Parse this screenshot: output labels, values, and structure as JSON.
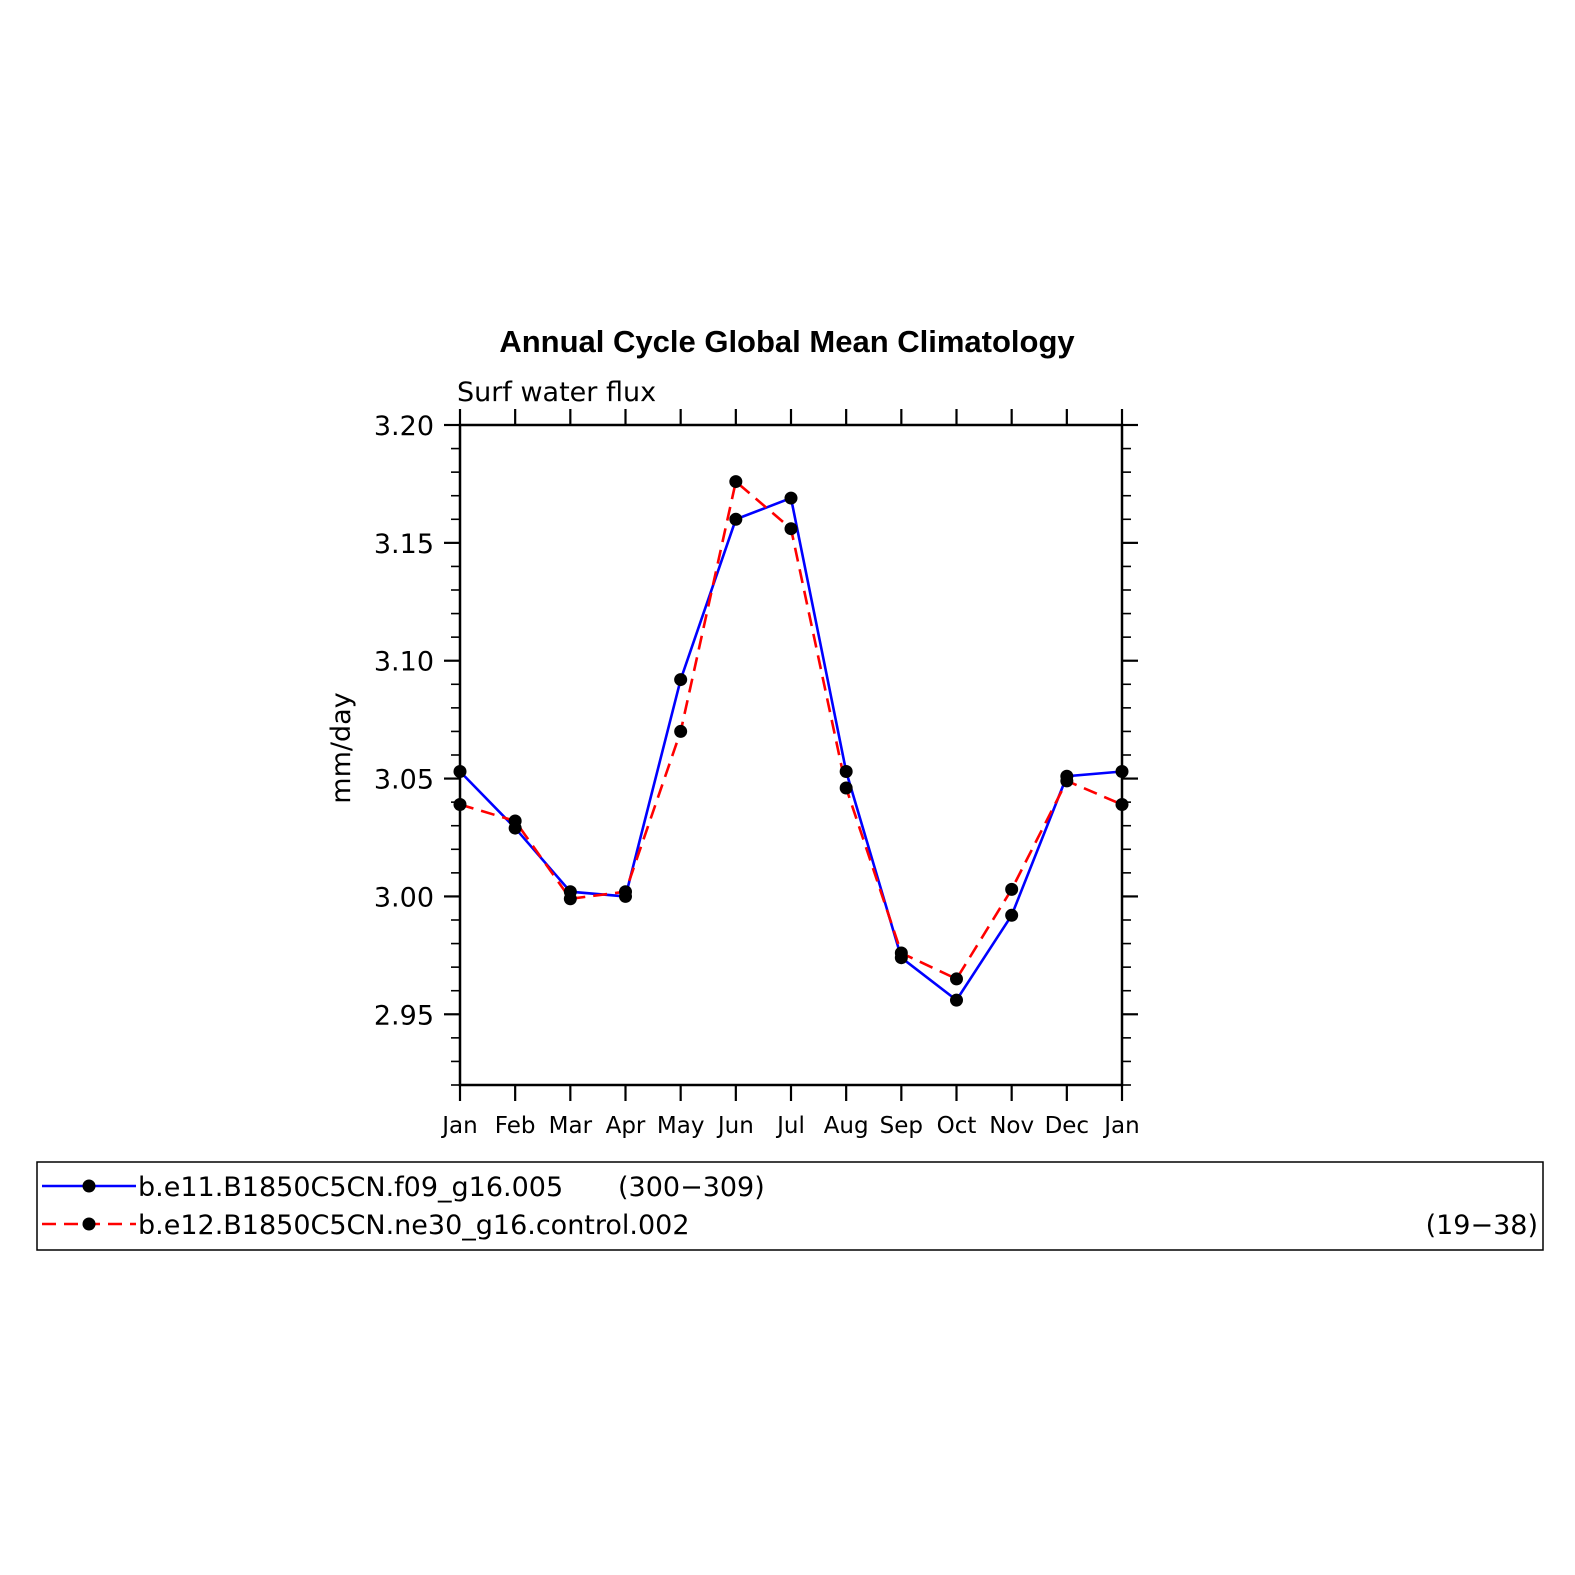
{
  "chart_data": {
    "type": "line",
    "title": "Annual Cycle Global Mean Climatology",
    "subtitle": "Surf water flux",
    "ylabel": "mm/day",
    "xlabel": "",
    "ylim": [
      2.92,
      3.2
    ],
    "yticks": [
      "3.20",
      "3.15",
      "3.10",
      "3.05",
      "3.00",
      "2.95"
    ],
    "categories": [
      "Jan",
      "Feb",
      "Mar",
      "Apr",
      "May",
      "Jun",
      "Jul",
      "Aug",
      "Sep",
      "Oct",
      "Nov",
      "Dec",
      "Jan"
    ],
    "series": [
      {
        "name": "b.e11.B1850C5CN.f09_g16.005",
        "years": "(300−309)",
        "color": "#0000ff",
        "style": "solid",
        "values": [
          3.053,
          3.029,
          3.002,
          3.0,
          3.092,
          3.16,
          3.169,
          3.053,
          2.974,
          2.956,
          2.992,
          3.051,
          3.053
        ]
      },
      {
        "name": "b.e12.B1850C5CN.ne30_g16.control.002",
        "years": "(19−38)",
        "color": "#ff0000",
        "style": "dashed",
        "values": [
          3.039,
          3.032,
          2.999,
          3.002,
          3.07,
          3.176,
          3.156,
          3.046,
          2.976,
          2.965,
          3.003,
          3.049,
          3.039
        ]
      }
    ],
    "grid": false,
    "legend_position": "bottom"
  }
}
